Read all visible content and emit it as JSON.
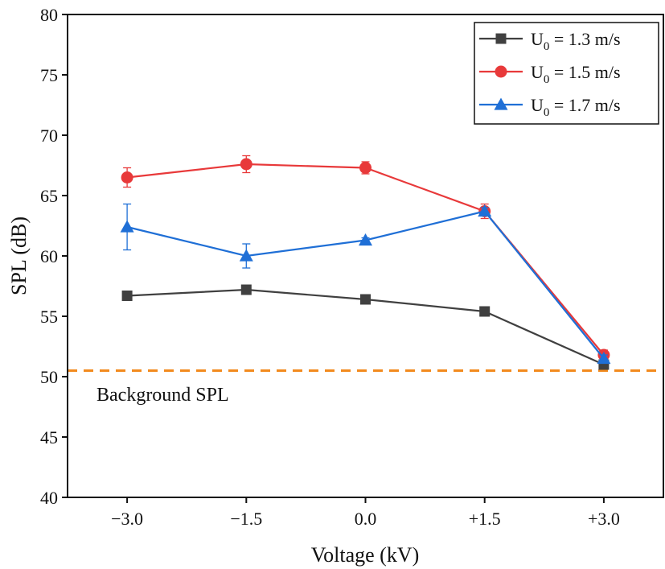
{
  "chart_data": {
    "type": "line",
    "title": "",
    "xlabel": "Voltage (kV)",
    "ylabel": "SPL (dB)",
    "categories": [
      "−3.0",
      "−1.5",
      "0.0",
      "+1.5",
      "+3.0"
    ],
    "x": [
      -3.0,
      -1.5,
      0.0,
      1.5,
      3.0
    ],
    "xlim": [
      -3.75,
      3.75
    ],
    "ylim": [
      40,
      80
    ],
    "yticks": [
      40,
      45,
      50,
      55,
      60,
      65,
      70,
      75,
      80
    ],
    "grid": false,
    "legend_position": "top-right",
    "series": [
      {
        "name": "U0 = 1.3 m/s",
        "legend_main": "U",
        "legend_sub": "0",
        "legend_rest": " = 1.3 m/s",
        "marker": "square",
        "color": "#404040",
        "values": [
          56.7,
          57.2,
          56.4,
          55.4,
          51.0
        ],
        "errors": [
          0.1,
          0.3,
          0.1,
          0.1,
          0.1
        ]
      },
      {
        "name": "U0 = 1.5 m/s",
        "legend_main": "U",
        "legend_sub": "0",
        "legend_rest": " = 1.5 m/s",
        "marker": "circle",
        "color": "#e8393a",
        "values": [
          66.5,
          67.6,
          67.3,
          63.7,
          51.8
        ],
        "errors": [
          0.8,
          0.7,
          0.5,
          0.6,
          0.4
        ]
      },
      {
        "name": "U0 = 1.7 m/s",
        "legend_main": "U",
        "legend_sub": "0",
        "legend_rest": " = 1.7 m/s",
        "marker": "triangle",
        "color": "#1f6fd6",
        "values": [
          62.4,
          60.0,
          61.3,
          63.7,
          51.5
        ],
        "errors": [
          1.9,
          1.0,
          0.2,
          0.3,
          0.3
        ]
      }
    ],
    "reference_line": {
      "label": "Background SPL",
      "value": 50.5,
      "color": "#f28a1e",
      "style": "dashed"
    }
  }
}
